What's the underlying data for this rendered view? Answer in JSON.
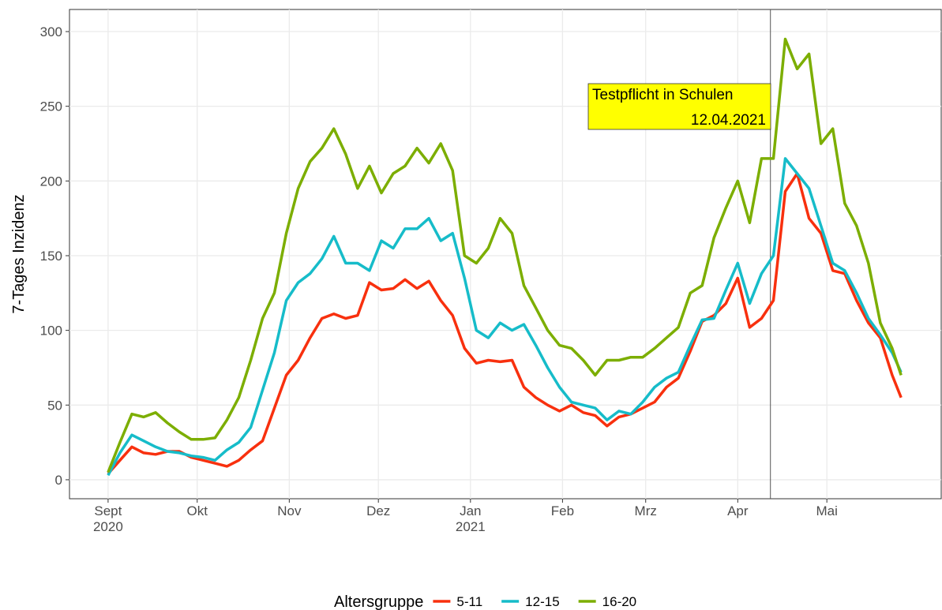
{
  "chart_data": {
    "type": "line",
    "y_label": "7-Tages Inzidenz",
    "legend_title": "Altersgruppe",
    "legend": "bottom",
    "grid": true,
    "x": [
      0,
      4,
      8,
      12,
      16,
      20,
      24,
      28,
      32,
      36,
      40,
      44,
      48,
      52,
      56,
      60,
      64,
      68,
      72,
      76,
      80,
      84,
      88,
      92,
      96,
      100,
      104,
      108,
      112,
      116,
      120,
      124,
      128,
      132,
      136,
      140,
      144,
      148,
      152,
      156,
      160,
      164,
      168,
      172,
      176,
      180,
      184,
      188,
      192,
      196,
      200,
      204,
      208,
      212,
      216,
      220,
      224,
      228,
      232,
      236,
      240,
      244,
      248,
      252,
      256,
      260,
      264,
      267
    ],
    "xlim": [
      -13,
      280.5
    ],
    "xticks": [
      {
        "value": 0,
        "label": "Sept\n2020"
      },
      {
        "value": 30,
        "label": "Okt"
      },
      {
        "value": 61,
        "label": "Nov"
      },
      {
        "value": 91,
        "label": "Dez"
      },
      {
        "value": 122,
        "label": "Jan\n2021"
      },
      {
        "value": 153,
        "label": "Feb"
      },
      {
        "value": 181,
        "label": "Mrz"
      },
      {
        "value": 212,
        "label": "Apr"
      },
      {
        "value": 242,
        "label": "Mai"
      }
    ],
    "ylim": [
      -12.7,
      314.8
    ],
    "yticks": [
      0,
      50,
      100,
      150,
      200,
      250,
      300
    ],
    "annotation": {
      "x": 223,
      "text": "Testpflicht in Schulen",
      "date": "12.04.2021"
    },
    "series": [
      {
        "name": "5-11",
        "color": "#f8300e",
        "values": [
          4,
          13,
          22,
          18,
          17,
          19,
          19,
          15,
          13,
          11,
          9,
          13,
          20,
          26,
          48,
          70,
          80,
          95,
          108,
          111,
          108,
          110,
          132,
          127,
          128,
          134,
          128,
          133,
          120,
          110,
          88,
          78,
          80,
          79,
          80,
          62,
          55,
          50,
          46,
          50,
          45,
          43,
          36,
          42,
          44,
          48,
          52,
          62,
          68,
          86,
          106,
          110,
          118,
          135,
          102,
          108,
          120,
          193,
          205,
          175,
          165,
          140,
          138,
          120,
          105,
          95,
          70,
          55
        ]
      },
      {
        "name": "12-15",
        "color": "#16bcc9",
        "values": [
          3,
          18,
          30,
          26,
          22,
          19,
          18,
          16,
          15,
          13,
          20,
          25,
          35,
          60,
          85,
          120,
          132,
          138,
          148,
          163,
          145,
          145,
          140,
          160,
          155,
          168,
          168,
          175,
          160,
          165,
          135,
          100,
          95,
          105,
          100,
          104,
          90,
          75,
          62,
          52,
          50,
          48,
          40,
          46,
          44,
          52,
          62,
          68,
          72,
          90,
          107,
          108,
          127,
          145,
          118,
          138,
          150,
          215,
          205,
          195,
          170,
          145,
          140,
          125,
          108,
          97,
          85,
          72
        ]
      },
      {
        "name": "16-20",
        "color": "#7cae00",
        "values": [
          5,
          25,
          44,
          42,
          45,
          38,
          32,
          27,
          27,
          28,
          40,
          55,
          80,
          108,
          125,
          165,
          195,
          213,
          222,
          235,
          218,
          195,
          210,
          192,
          205,
          210,
          222,
          212,
          225,
          207,
          150,
          145,
          155,
          175,
          165,
          130,
          115,
          100,
          90,
          88,
          80,
          70,
          80,
          80,
          82,
          82,
          88,
          95,
          102,
          125,
          130,
          162,
          182,
          200,
          172,
          215,
          215,
          295,
          275,
          285,
          225,
          235,
          185,
          170,
          145,
          105,
          88,
          70
        ]
      }
    ]
  }
}
